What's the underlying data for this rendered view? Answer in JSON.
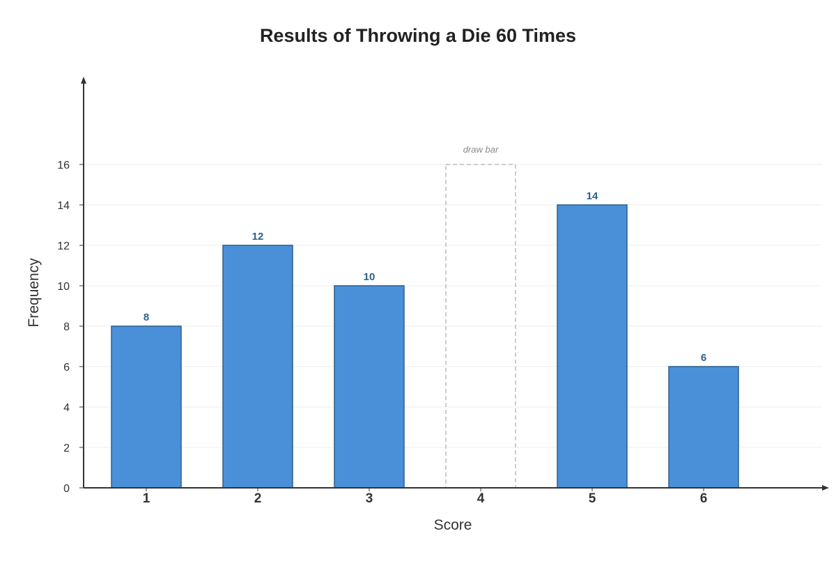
{
  "chart_data": {
    "type": "bar",
    "title": "Results of Throwing a Die 60 Times",
    "xlabel": "Score",
    "ylabel": "Frequency",
    "categories": [
      "1",
      "2",
      "3",
      "4",
      "5",
      "6"
    ],
    "values": [
      8,
      12,
      10,
      null,
      14,
      6
    ],
    "ylim": [
      0,
      16
    ],
    "yticks": [
      0,
      2,
      4,
      6,
      8,
      10,
      12,
      14,
      16
    ],
    "grid": true,
    "placeholder": {
      "category": "4",
      "label": "draw bar",
      "outline_value": 16
    },
    "colors": {
      "bar_fill": "#4a90d9",
      "bar_stroke": "#2c5f8a",
      "value_label": "#2c5f8a",
      "axis": "#333333",
      "grid": "#eeeeee",
      "placeholder_stroke": "#bbbbbb"
    }
  }
}
